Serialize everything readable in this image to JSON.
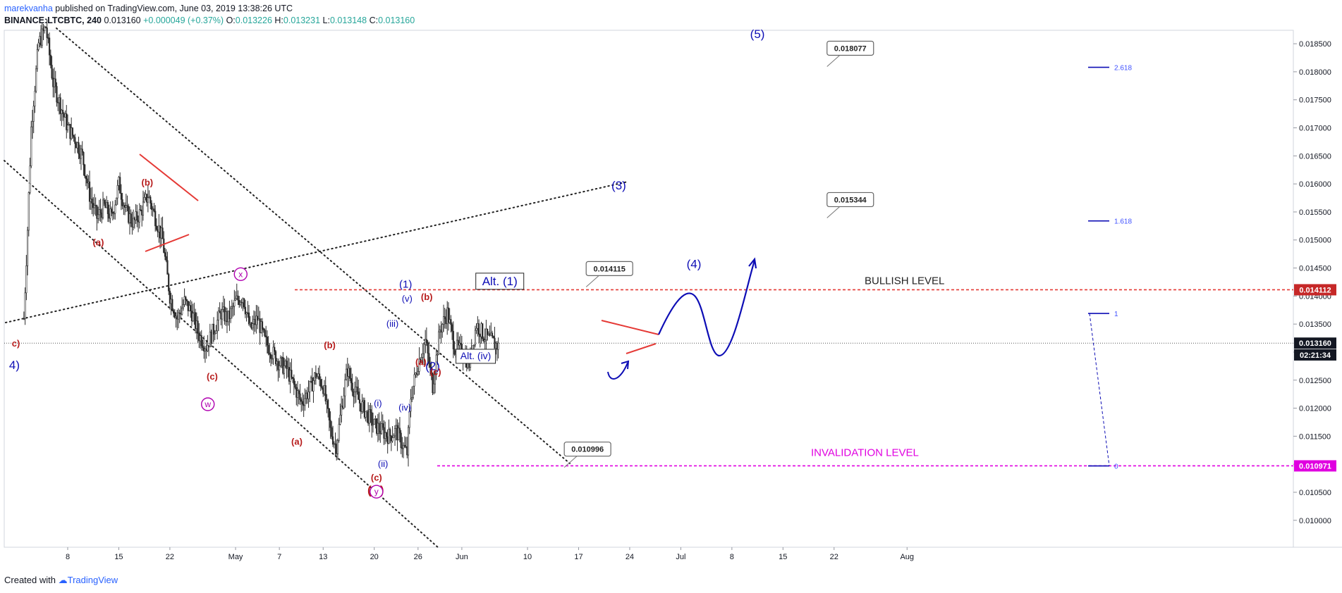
{
  "header": {
    "author": "marekvanha",
    "published": " published on TradingView.com, June 03, 2019 13:38:26 UTC",
    "symbol": "BINANCE:LTCBTC, 240",
    "last": "0.013160",
    "change": "+0.000049 (+0.37%)",
    "o_label": "O:",
    "o": "0.013226",
    "h_label": "H:",
    "h": "0.013231",
    "l_label": "L:",
    "l": "0.013148",
    "c_label": "C:",
    "c": "0.013160"
  },
  "footer": {
    "created": "Created with",
    "brand": "TradingView"
  },
  "colors": {
    "red": "#b71c1c",
    "blue": "#0d0db5",
    "magenta": "#e000e0",
    "candle": "#2b2b2b",
    "price_tag": "#c62828"
  },
  "chart_data": {
    "type": "candlestick",
    "ylim": [
      0.00952,
      0.01874
    ],
    "y_ticks": [
      0.01,
      0.0105,
      0.011,
      0.0115,
      0.012,
      0.0125,
      0.013,
      0.0135,
      0.014,
      0.0145,
      0.015,
      0.0155,
      0.016,
      0.0165,
      0.017,
      0.0175,
      0.018,
      0.0185
    ],
    "y_tick_labels": [
      "0.010000",
      "0.010500",
      "0.011000",
      "0.011500",
      "0.012000",
      "0.012500",
      "0.013000",
      "0.013500",
      "0.014000",
      "0.014500",
      "0.015000",
      "0.015500",
      "0.016000",
      "0.016500",
      "0.017000",
      "0.017500",
      "0.018000",
      "0.018500"
    ],
    "x_ticks": [
      {
        "day": 8,
        "label": "8"
      },
      {
        "day": 15,
        "label": "15"
      },
      {
        "day": 22,
        "label": "22"
      },
      {
        "day": 31,
        "label": "May"
      },
      {
        "day": 37,
        "label": "7"
      },
      {
        "day": 43,
        "label": "13"
      },
      {
        "day": 50,
        "label": "20"
      },
      {
        "day": 56,
        "label": "26"
      },
      {
        "day": 62,
        "label": "Jun"
      },
      {
        "day": 71,
        "label": "10"
      },
      {
        "day": 78,
        "label": "17"
      },
      {
        "day": 85,
        "label": "24"
      },
      {
        "day": 92,
        "label": "Jul"
      },
      {
        "day": 99,
        "label": "8"
      },
      {
        "day": 106,
        "label": "15"
      },
      {
        "day": 113,
        "label": "22"
      },
      {
        "day": 123,
        "label": "Aug"
      }
    ],
    "price_path": [
      [
        2,
        0.0136
      ],
      [
        2.5,
        0.0152
      ],
      [
        3,
        0.017
      ],
      [
        4,
        0.0185
      ],
      [
        5,
        0.0188
      ],
      [
        6,
        0.0178
      ],
      [
        7,
        0.0174
      ],
      [
        8,
        0.017
      ],
      [
        9,
        0.0168
      ],
      [
        10,
        0.0165
      ],
      [
        11,
        0.0158
      ],
      [
        12,
        0.0154
      ],
      [
        13,
        0.0156
      ],
      [
        14,
        0.0154
      ],
      [
        15,
        0.016
      ],
      [
        16,
        0.0155
      ],
      [
        17,
        0.0153
      ],
      [
        18,
        0.0155
      ],
      [
        19,
        0.0158
      ],
      [
        20,
        0.0154
      ],
      [
        21,
        0.015
      ],
      [
        22,
        0.014
      ],
      [
        23,
        0.0136
      ],
      [
        24,
        0.0139
      ],
      [
        25,
        0.0137
      ],
      [
        26,
        0.0133
      ],
      [
        27,
        0.0131
      ],
      [
        28,
        0.0134
      ],
      [
        29,
        0.0137
      ],
      [
        30,
        0.0136
      ],
      [
        31,
        0.0139
      ],
      [
        32,
        0.014
      ],
      [
        33,
        0.0134
      ],
      [
        34,
        0.0136
      ],
      [
        35,
        0.0132
      ],
      [
        36,
        0.013
      ],
      [
        37,
        0.0128
      ],
      [
        38,
        0.0127
      ],
      [
        39,
        0.0124
      ],
      [
        40,
        0.0121
      ],
      [
        41,
        0.0123
      ],
      [
        42,
        0.0126
      ],
      [
        43,
        0.0124
      ],
      [
        44,
        0.0116
      ],
      [
        44.8,
        0.0113
      ],
      [
        45.5,
        0.012
      ],
      [
        46.3,
        0.0127
      ],
      [
        47,
        0.0124
      ],
      [
        48,
        0.0121
      ],
      [
        49,
        0.0119
      ],
      [
        50,
        0.0117
      ],
      [
        51,
        0.0116
      ],
      [
        52,
        0.0115
      ],
      [
        53,
        0.0116
      ],
      [
        54,
        0.0113
      ],
      [
        54.5,
        0.0112
      ],
      [
        55,
        0.0122
      ],
      [
        56,
        0.0128
      ],
      [
        57,
        0.0132
      ],
      [
        58,
        0.0124
      ],
      [
        59,
        0.0134
      ],
      [
        60,
        0.0137
      ],
      [
        61,
        0.0131
      ],
      [
        62,
        0.013
      ],
      [
        63,
        0.0128
      ],
      [
        64,
        0.0135
      ],
      [
        65,
        0.0133
      ],
      [
        66,
        0.0132
      ],
      [
        67,
        0.0131
      ]
    ],
    "horizontal_lines": [
      {
        "name": "bullish-level",
        "price": 0.014112,
        "color": "#e53935",
        "style": "dashed",
        "label": "BULLISH LEVEL"
      },
      {
        "name": "invalidation-level",
        "price": 0.010971,
        "color": "#e000e0",
        "style": "dashed",
        "label": "INVALIDATION LEVEL"
      },
      {
        "name": "last-price",
        "price": 0.01316,
        "color": "#555555",
        "style": "dotted"
      }
    ],
    "price_tags": [
      {
        "price": 0.014112,
        "text": "0.014112",
        "bg": "#c62828"
      },
      {
        "price": 0.01316,
        "text": "0.013160",
        "bg": "#131722"
      },
      {
        "price": 0.01295,
        "text": "02:21:34",
        "bg": "#131722"
      },
      {
        "price": 0.010971,
        "text": "0.010971",
        "bg": "#e000e0"
      }
    ],
    "callouts": [
      {
        "text": "0.018077",
        "day": 113,
        "price": 0.01842
      },
      {
        "text": "0.015344",
        "day": 113,
        "price": 0.01572
      },
      {
        "text": "0.014115",
        "day": 80,
        "price": 0.01449
      },
      {
        "text": "0.010996",
        "day": 77,
        "price": 0.01127
      }
    ],
    "fib_levels": [
      {
        "ratio": "2.618",
        "price": 0.01808
      },
      {
        "ratio": "1.618",
        "price": 0.01534
      },
      {
        "ratio": "1",
        "price": 0.01369
      },
      {
        "ratio": "0",
        "price": 0.01097
      }
    ],
    "wave_labels": [
      {
        "t": "(5)",
        "day": 102.5,
        "price": 0.0186,
        "c": "blue",
        "s": 17
      },
      {
        "t": "(3)",
        "day": 83.5,
        "price": 0.0159,
        "c": "blue",
        "s": 17
      },
      {
        "t": "(4)",
        "day": 93.8,
        "price": 0.0145,
        "c": "blue",
        "s": 17
      },
      {
        "t": "(1)",
        "day": 54.3,
        "price": 0.01415,
        "c": "blue",
        "s": 15
      },
      {
        "t": "(v)",
        "day": 54.5,
        "price": 0.0139,
        "c": "blue",
        "s": 13
      },
      {
        "t": "(iii)",
        "day": 52.5,
        "price": 0.01345,
        "c": "blue",
        "s": 13
      },
      {
        "t": "(iv)",
        "day": 54.2,
        "price": 0.01196,
        "c": "blue",
        "s": 13
      },
      {
        "t": "(i)",
        "day": 50.5,
        "price": 0.01203,
        "c": "blue",
        "s": 13
      },
      {
        "t": "(ii)",
        "day": 51.2,
        "price": 0.01095,
        "c": "blue",
        "s": 13
      },
      {
        "t": "(2)",
        "day": 58.0,
        "price": 0.01268,
        "c": "blue",
        "s": 17
      },
      {
        "t": "4)",
        "day": 0.7,
        "price": 0.0127,
        "c": "blue",
        "s": 17
      },
      {
        "t": "(b)",
        "day": 18.9,
        "price": 0.01597,
        "c": "red",
        "s": 13
      },
      {
        "t": "(a)",
        "day": 12.2,
        "price": 0.0149,
        "c": "red",
        "s": 13
      },
      {
        "t": "(c)",
        "day": 27.8,
        "price": 0.01251,
        "c": "red",
        "s": 13
      },
      {
        "t": "(b)",
        "day": 43.9,
        "price": 0.01307,
        "c": "red",
        "s": 13
      },
      {
        "t": "(a)",
        "day": 39.4,
        "price": 0.01135,
        "c": "red",
        "s": 13
      },
      {
        "t": "(c)",
        "day": 50.3,
        "price": 0.01071,
        "c": "red",
        "s": 13
      },
      {
        "t": "(B)",
        "day": 50.2,
        "price": 0.01047,
        "c": "red",
        "s": 17
      },
      {
        "t": "(b)",
        "day": 57.2,
        "price": 0.01393,
        "c": "red",
        "s": 13
      },
      {
        "t": "(a)",
        "day": 56.4,
        "price": 0.01277,
        "c": "red",
        "s": 13
      },
      {
        "t": "(c)",
        "day": 58.4,
        "price": 0.01259,
        "c": "red",
        "s": 13
      },
      {
        "t": "c)",
        "day": 0.9,
        "price": 0.0131,
        "c": "red",
        "s": 13
      }
    ],
    "circled_labels": [
      {
        "t": "x",
        "day": 31.7,
        "price": 0.01439
      },
      {
        "t": "w",
        "day": 27.2,
        "price": 0.01207
      },
      {
        "t": "y",
        "day": 50.3,
        "price": 0.01051
      }
    ],
    "boxed_labels": [
      {
        "t": "Alt. (1)",
        "day": 67.2,
        "price": 0.01422,
        "s": 17
      },
      {
        "t": "Alt. (iv)",
        "day": 63.9,
        "price": 0.0129,
        "s": 14
      }
    ]
  }
}
